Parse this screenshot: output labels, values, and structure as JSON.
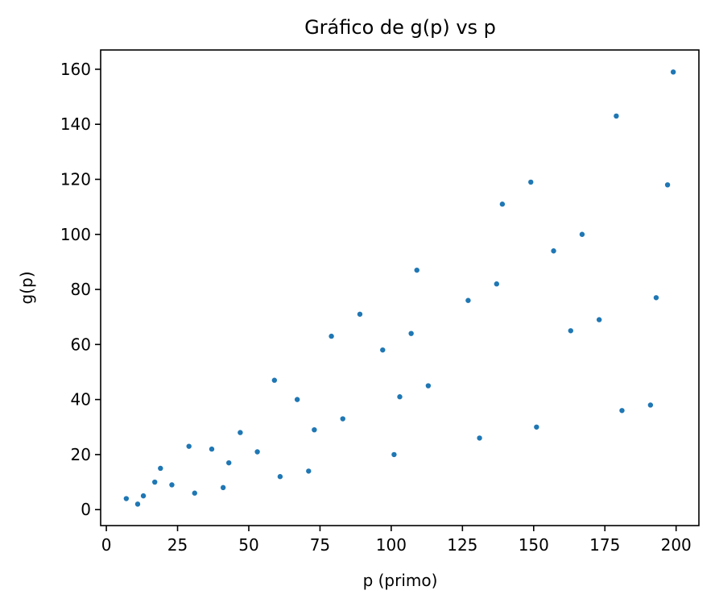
{
  "chart_data": {
    "type": "scatter",
    "title": "Gráfico de g(p) vs p",
    "xlabel": "p (primo)",
    "ylabel": "g(p)",
    "xlim": [
      -2,
      208
    ],
    "ylim": [
      -5.8,
      167
    ],
    "xticks": [
      0,
      25,
      50,
      75,
      100,
      125,
      150,
      175,
      200
    ],
    "yticks": [
      0,
      20,
      40,
      60,
      80,
      100,
      120,
      140,
      160
    ],
    "grid": false,
    "marker_color": "#1f77b4",
    "points": [
      {
        "x": 7,
        "y": 4
      },
      {
        "x": 11,
        "y": 2
      },
      {
        "x": 13,
        "y": 5
      },
      {
        "x": 17,
        "y": 10
      },
      {
        "x": 19,
        "y": 15
      },
      {
        "x": 23,
        "y": 9
      },
      {
        "x": 29,
        "y": 23
      },
      {
        "x": 31,
        "y": 6
      },
      {
        "x": 37,
        "y": 22
      },
      {
        "x": 41,
        "y": 8
      },
      {
        "x": 43,
        "y": 17
      },
      {
        "x": 47,
        "y": 28
      },
      {
        "x": 53,
        "y": 21
      },
      {
        "x": 59,
        "y": 47
      },
      {
        "x": 61,
        "y": 12
      },
      {
        "x": 67,
        "y": 40
      },
      {
        "x": 71,
        "y": 14
      },
      {
        "x": 73,
        "y": 29
      },
      {
        "x": 79,
        "y": 63
      },
      {
        "x": 83,
        "y": 33
      },
      {
        "x": 89,
        "y": 71
      },
      {
        "x": 97,
        "y": 58
      },
      {
        "x": 101,
        "y": 20
      },
      {
        "x": 103,
        "y": 41
      },
      {
        "x": 107,
        "y": 64
      },
      {
        "x": 109,
        "y": 87
      },
      {
        "x": 113,
        "y": 45
      },
      {
        "x": 127,
        "y": 76
      },
      {
        "x": 131,
        "y": 26
      },
      {
        "x": 137,
        "y": 82
      },
      {
        "x": 139,
        "y": 111
      },
      {
        "x": 149,
        "y": 119
      },
      {
        "x": 151,
        "y": 30
      },
      {
        "x": 157,
        "y": 94
      },
      {
        "x": 163,
        "y": 65
      },
      {
        "x": 167,
        "y": 100
      },
      {
        "x": 173,
        "y": 69
      },
      {
        "x": 179,
        "y": 143
      },
      {
        "x": 181,
        "y": 36
      },
      {
        "x": 191,
        "y": 38
      },
      {
        "x": 193,
        "y": 77
      },
      {
        "x": 197,
        "y": 118
      },
      {
        "x": 199,
        "y": 159
      }
    ]
  }
}
